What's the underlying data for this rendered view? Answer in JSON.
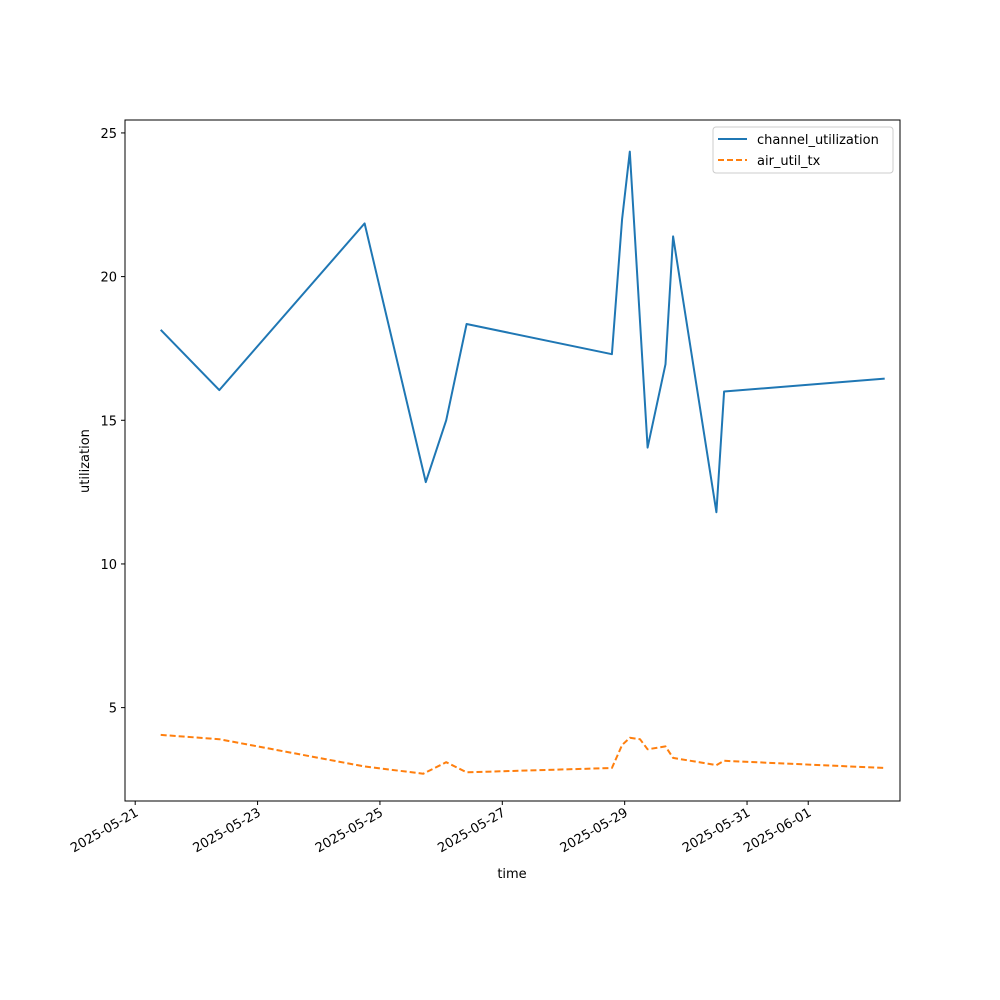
{
  "chart_data": {
    "type": "line",
    "title": "",
    "xlabel": "time",
    "ylabel": "utilization",
    "xlim": [
      "2025-05-20 20:00",
      "2025-06-02 12:00"
    ],
    "ylim": [
      1.75,
      25.45
    ],
    "grid": false,
    "legend_position": "top-right",
    "x_ticks": [
      "2025-05-21",
      "2025-05-23",
      "2025-05-25",
      "2025-05-27",
      "2025-05-29",
      "2025-05-31",
      "2025-06-01"
    ],
    "y_ticks": [
      5,
      10,
      15,
      20,
      25
    ],
    "series": [
      {
        "name": "channel_utilization",
        "color": "#1f77b4",
        "style": "solid",
        "x": [
          "2025-05-21 10:00",
          "2025-05-22 09:00",
          "2025-05-24 18:00",
          "2025-05-25 18:00",
          "2025-05-26 02:00",
          "2025-05-26 10:00",
          "2025-05-28 19:00",
          "2025-05-28 23:00",
          "2025-05-29 02:00",
          "2025-05-29 09:00",
          "2025-05-29 16:00",
          "2025-05-29 19:00",
          "2025-05-30 12:00",
          "2025-05-30 15:00",
          "2025-06-02 06:00"
        ],
        "y": [
          18.15,
          16.05,
          21.85,
          12.85,
          15.0,
          18.35,
          17.3,
          22.0,
          24.35,
          14.05,
          16.95,
          21.4,
          11.8,
          16.0,
          16.45
        ]
      },
      {
        "name": "air_util_tx",
        "color": "#ff7f0e",
        "style": "dashed",
        "x": [
          "2025-05-21 10:00",
          "2025-05-22 09:00",
          "2025-05-24 18:00",
          "2025-05-25 17:00",
          "2025-05-26 02:00",
          "2025-05-26 10:00",
          "2025-05-28 19:00",
          "2025-05-28 23:00",
          "2025-05-29 02:00",
          "2025-05-29 06:00",
          "2025-05-29 09:00",
          "2025-05-29 16:00",
          "2025-05-29 19:00",
          "2025-05-30 12:00",
          "2025-05-30 15:00",
          "2025-06-02 06:00"
        ],
        "y": [
          4.05,
          3.9,
          2.95,
          2.7,
          3.1,
          2.75,
          2.9,
          3.7,
          3.95,
          3.9,
          3.55,
          3.65,
          3.25,
          3.0,
          3.15,
          2.9
        ]
      }
    ]
  }
}
